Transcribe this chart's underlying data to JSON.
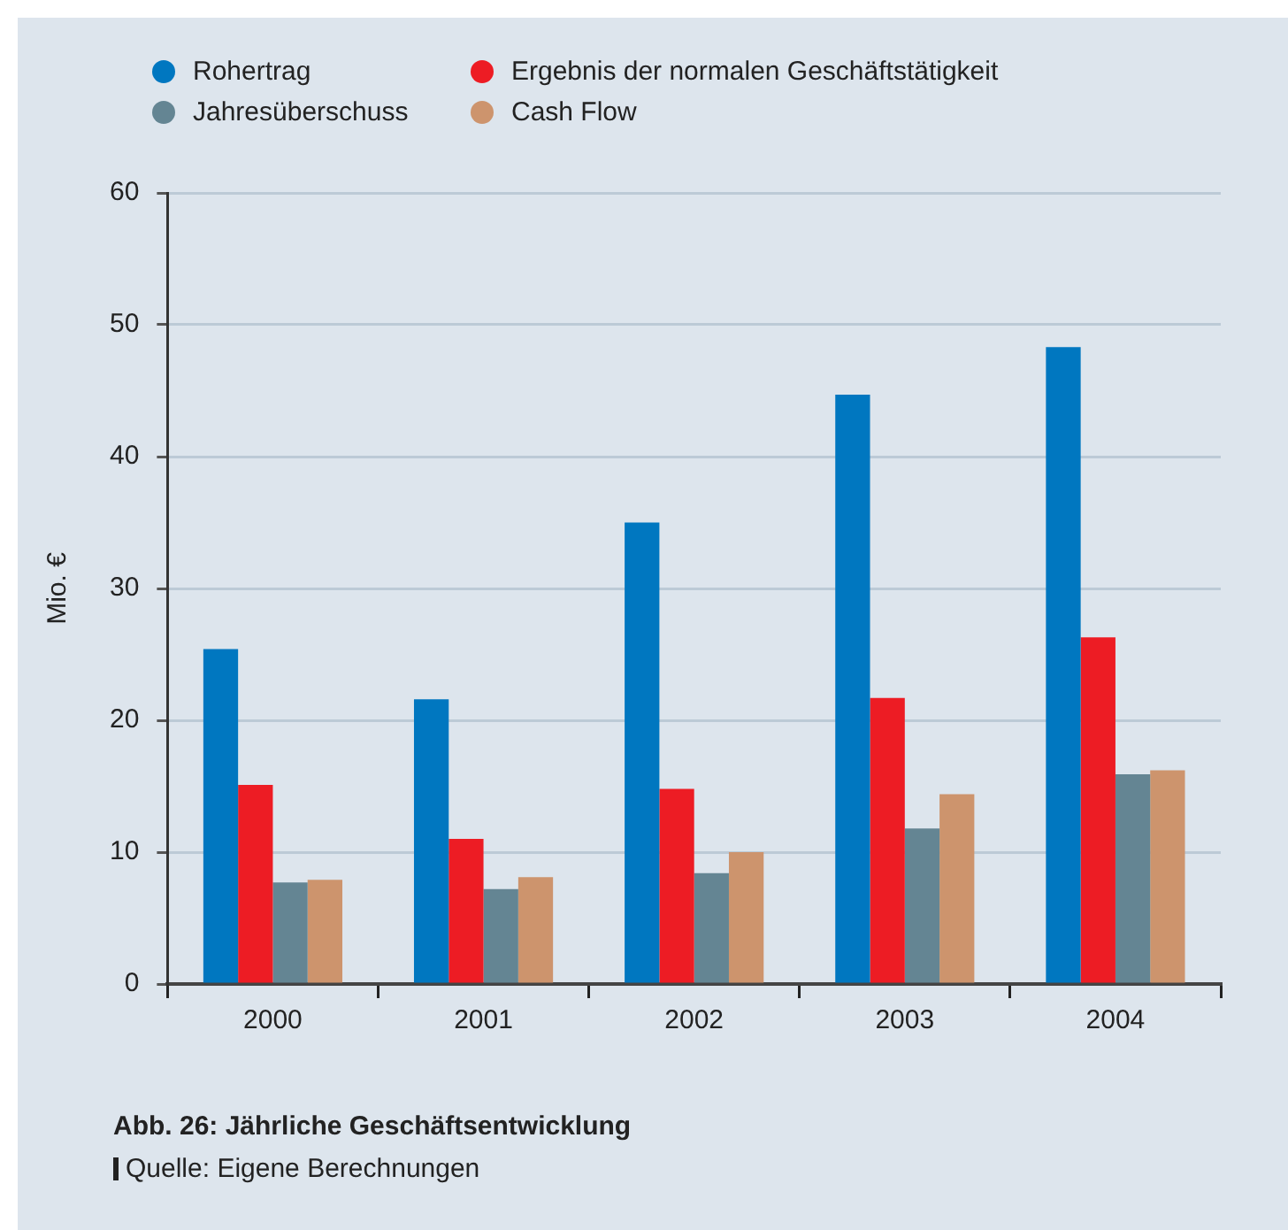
{
  "chart_data": {
    "type": "bar",
    "ylabel": "Mio. €",
    "categories": [
      "2000",
      "2001",
      "2002",
      "2003",
      "2004"
    ],
    "series": [
      {
        "name": "Rohertrag",
        "color": "#0077c0",
        "values": [
          25.4,
          21.6,
          35.0,
          44.7,
          48.3
        ]
      },
      {
        "name": "Ergebnis der normalen Geschäftstätigkeit",
        "color": "#ed1c24",
        "values": [
          15.1,
          11.0,
          14.8,
          21.7,
          26.3
        ]
      },
      {
        "name": "Jahresüberschuss",
        "color": "#648593",
        "values": [
          7.7,
          7.2,
          8.4,
          11.8,
          15.9
        ]
      },
      {
        "name": "Cash Flow",
        "color": "#cd946d",
        "values": [
          7.9,
          8.1,
          10.0,
          14.4,
          16.2
        ]
      }
    ],
    "ylim": [
      0,
      60
    ],
    "yticks": [
      0,
      10,
      20,
      30,
      40,
      50,
      60
    ],
    "grid": "y",
    "legend": "top left",
    "annotations": [
      "Abb. 26: Jährliche Geschäftsentwicklung",
      "Quelle: Eigene Berechnungen"
    ]
  }
}
